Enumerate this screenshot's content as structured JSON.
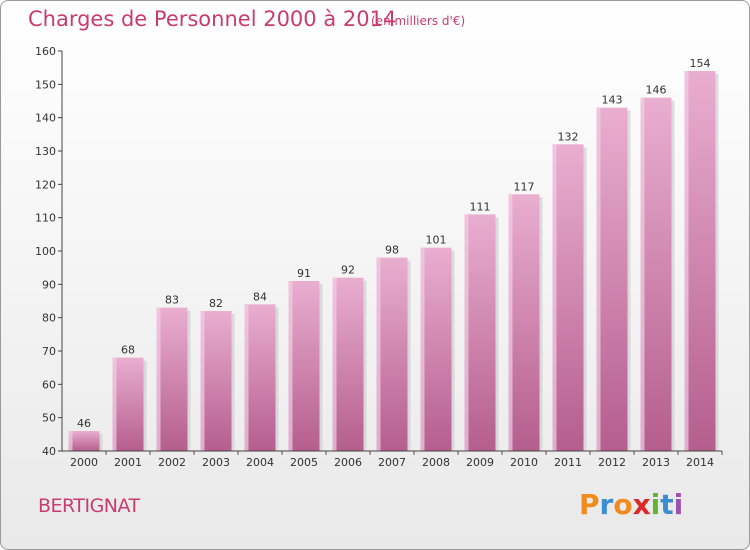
{
  "header": {
    "title": "Charges de Personnel 2000 à 2014",
    "subtitle": "(en milliers d'€)"
  },
  "commune": "BERTIGNAT",
  "logo": {
    "text": "Proxiti",
    "letters": [
      "P",
      "r",
      "o",
      "x",
      "i",
      "t",
      "i"
    ],
    "colors": [
      "#f08c1e",
      "#3c8cd2",
      "#f08c1e",
      "#dc2828",
      "#64b432",
      "#3c8cd2",
      "#a050b4"
    ]
  },
  "chart_data": {
    "type": "bar",
    "title": "Charges de Personnel 2000 à 2014",
    "subtitle": "(en milliers d'€)",
    "xlabel": "",
    "ylabel": "",
    "categories": [
      "2000",
      "2001",
      "2002",
      "2003",
      "2004",
      "2005",
      "2006",
      "2007",
      "2008",
      "2009",
      "2010",
      "2011",
      "2012",
      "2013",
      "2014"
    ],
    "values": [
      46,
      68,
      83,
      82,
      84,
      91,
      92,
      98,
      101,
      111,
      117,
      132,
      143,
      146,
      154
    ],
    "ylim": [
      40,
      160
    ],
    "yticks": [
      40,
      50,
      60,
      70,
      80,
      90,
      100,
      110,
      120,
      130,
      140,
      150,
      160
    ],
    "grid": false,
    "legend": "none",
    "colors": {
      "bar": "#d985b1",
      "bar_light": "#e9aed0",
      "bar_dark": "#b55e8e",
      "label": "#333333",
      "axis": "#333333"
    }
  }
}
